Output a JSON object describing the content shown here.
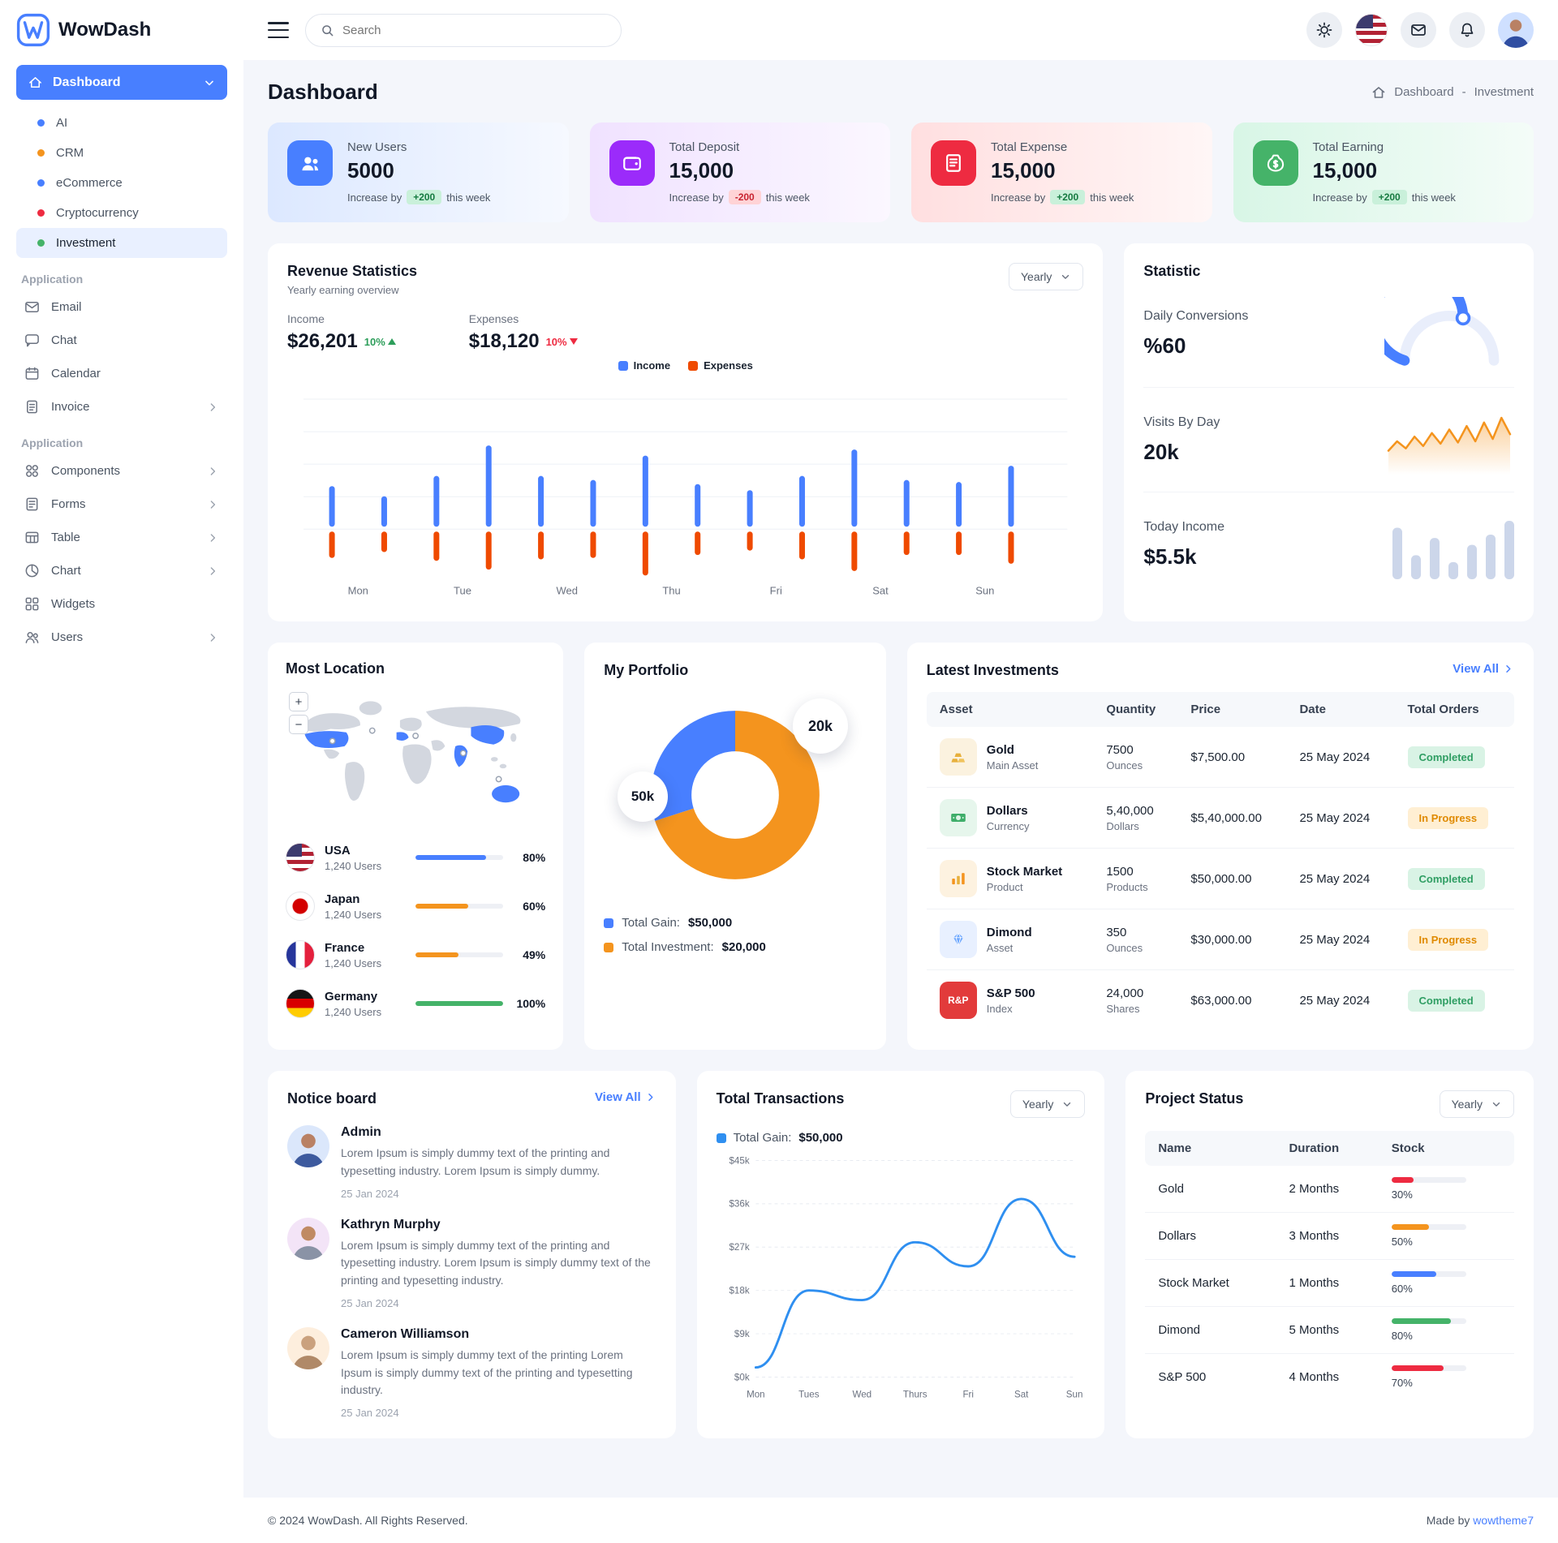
{
  "brand": {
    "name": "WowDash"
  },
  "topbar": {
    "search_placeholder": "Search"
  },
  "sidebar": {
    "dashboard_label": "Dashboard",
    "dashboard_children": [
      {
        "label": "AI",
        "color": "#487fff"
      },
      {
        "label": "CRM",
        "color": "#f4941e"
      },
      {
        "label": "eCommerce",
        "color": "#487fff"
      },
      {
        "label": "Cryptocurrency",
        "color": "#ee2b41"
      },
      {
        "label": "Investment",
        "color": "#45b369"
      }
    ],
    "sections": [
      {
        "label": "Application",
        "items": [
          {
            "label": "Email"
          },
          {
            "label": "Chat"
          },
          {
            "label": "Calendar"
          },
          {
            "label": "Invoice"
          }
        ]
      },
      {
        "label": "Application",
        "items": [
          {
            "label": "Components"
          },
          {
            "label": "Forms"
          },
          {
            "label": "Table"
          },
          {
            "label": "Chart"
          },
          {
            "label": "Widgets"
          },
          {
            "label": "Users"
          }
        ]
      }
    ]
  },
  "page": {
    "title": "Dashboard",
    "breadcrumb_home": "Dashboard",
    "breadcrumb_sep": "-",
    "breadcrumb_current": "Investment"
  },
  "stat_cards": [
    {
      "title": "New Users",
      "value": "5000",
      "lead": "Increase by",
      "delta": "+200",
      "tail": "this week",
      "accent": "#487fff"
    },
    {
      "title": "Total Deposit",
      "value": "15,000",
      "lead": "Increase by",
      "delta": "-200",
      "tail": "this week",
      "accent": "#9b2bfa"
    },
    {
      "title": "Total Expense",
      "value": "15,000",
      "lead": "Increase by",
      "delta": "+200",
      "tail": "this week",
      "accent": "#ee2b41"
    },
    {
      "title": "Total Earning",
      "value": "15,000",
      "lead": "Increase by",
      "delta": "+200",
      "tail": "this week",
      "accent": "#45b369"
    }
  ],
  "revenue": {
    "title": "Revenue Statistics",
    "subtitle": "Yearly earning overview",
    "period": "Yearly",
    "income_label": "Income",
    "income_value": "$26,201",
    "income_delta": "10%",
    "expenses_label": "Expenses",
    "expenses_value": "$18,120",
    "expenses_delta": "10%",
    "legend_income": "Income",
    "legend_expenses": "Expenses"
  },
  "statistic": {
    "title": "Statistic",
    "conversions_label": "Daily Conversions",
    "conversions_value": "%60",
    "visits_label": "Visits By Day",
    "visits_value": "20k",
    "today_income_label": "Today Income",
    "today_income_value": "$5.5k"
  },
  "locations": {
    "title": "Most Location",
    "zoom_in": "+",
    "zoom_out": "−",
    "items": [
      {
        "country": "USA",
        "users": "1,240 Users",
        "percent": 80,
        "percent_label": "80%",
        "color": "#487fff"
      },
      {
        "country": "Japan",
        "users": "1,240 Users",
        "percent": 60,
        "percent_label": "60%",
        "color": "#f4941e"
      },
      {
        "country": "France",
        "users": "1,240 Users",
        "percent": 49,
        "percent_label": "49%",
        "color": "#f4941e"
      },
      {
        "country": "Germany",
        "users": "1,240 Users",
        "percent": 100,
        "percent_label": "100%",
        "color": "#45b369"
      }
    ]
  },
  "portfolio": {
    "title": "My Portfolio",
    "callout_top": "20k",
    "callout_left": "50k",
    "legend": [
      {
        "label": "Total Gain:",
        "value": "$50,000",
        "color": "#487fff"
      },
      {
        "label": "Total Investment:",
        "value": "$20,000",
        "color": "#f4941e"
      }
    ]
  },
  "investments": {
    "title": "Latest Investments",
    "view_all": "View All",
    "headers": [
      "Asset",
      "Quantity",
      "Price",
      "Date",
      "Total Orders"
    ],
    "rows": [
      {
        "asset": "Gold",
        "type": "Main Asset",
        "qty": "7500",
        "qty_unit": "Ounces",
        "price": "$7,500.00",
        "date": "25 May 2024",
        "status": "Completed"
      },
      {
        "asset": "Dollars",
        "type": "Currency",
        "qty": "5,40,000",
        "qty_unit": "Dollars",
        "price": "$5,40,000.00",
        "date": "25 May 2024",
        "status": "In Progress"
      },
      {
        "asset": "Stock Market",
        "type": "Product",
        "qty": "1500",
        "qty_unit": "Products",
        "price": "$50,000.00",
        "date": "25 May 2024",
        "status": "Completed"
      },
      {
        "asset": "Dimond",
        "type": "Asset",
        "qty": "350",
        "qty_unit": "Ounces",
        "price": "$30,000.00",
        "date": "25 May 2024",
        "status": "In Progress"
      },
      {
        "asset": "S&P 500",
        "type": "Index",
        "qty": "24,000",
        "qty_unit": "Shares",
        "price": "$63,000.00",
        "date": "25 May 2024",
        "status": "Completed",
        "icon_text": "R&P"
      }
    ]
  },
  "notice": {
    "title": "Notice board",
    "view_all": "View All",
    "items": [
      {
        "name": "Admin",
        "text": "Lorem Ipsum is simply dummy text of the printing and typesetting industry. Lorem Ipsum is simply dummy.",
        "date": "25 Jan 2024"
      },
      {
        "name": "Kathryn Murphy",
        "text": "Lorem Ipsum is simply dummy text of the printing and typesetting industry. Lorem Ipsum is simply dummy text of the printing and typesetting industry.",
        "date": "25 Jan 2024"
      },
      {
        "name": "Cameron Williamson",
        "text": "Lorem Ipsum is simply dummy text of the printing Lorem Ipsum is simply dummy text of the printing and typesetting industry.",
        "date": "25 Jan 2024"
      }
    ]
  },
  "transactions": {
    "title": "Total Transactions",
    "period": "Yearly",
    "legend_label": "Total Gain:",
    "legend_value": "$50,000"
  },
  "project_status": {
    "title": "Project Status",
    "period": "Yearly",
    "headers": [
      "Name",
      "Duration",
      "Stock"
    ],
    "rows": [
      {
        "name": "Gold",
        "duration": "2 Months",
        "percent": 30,
        "percent_label": "30%",
        "color": "#ee2b41"
      },
      {
        "name": "Dollars",
        "duration": "3 Months",
        "percent": 50,
        "percent_label": "50%",
        "color": "#f4941e"
      },
      {
        "name": "Stock Market",
        "duration": "1 Months",
        "percent": 60,
        "percent_label": "60%",
        "color": "#487fff"
      },
      {
        "name": "Dimond",
        "duration": "5 Months",
        "percent": 80,
        "percent_label": "80%",
        "color": "#45b369"
      },
      {
        "name": "S&P 500",
        "duration": "4 Months",
        "percent": 70,
        "percent_label": "70%",
        "color": "#ee2b41"
      }
    ]
  },
  "footer": {
    "copyright": "© 2024 WowDash. All Rights Reserved.",
    "made_by": "Made by",
    "brand_link": "wowtheme7"
  },
  "chart_data": [
    {
      "id": "revenue-bars",
      "type": "bar",
      "title": "Revenue Statistics",
      "categories": [
        "Mon",
        "Tue",
        "Wed",
        "Thu",
        "Fri",
        "Sat",
        "Sun"
      ],
      "series": [
        {
          "name": "Income",
          "color": "#487fff",
          "values": [
            20,
            15,
            25,
            40,
            25,
            23,
            35,
            21,
            18,
            25,
            38,
            23,
            22,
            30
          ]
        },
        {
          "name": "Expenses",
          "color": "#ef4a00",
          "values": [
            18,
            14,
            20,
            26,
            19,
            18,
            30,
            16,
            13,
            19,
            27,
            16,
            16,
            22
          ]
        }
      ],
      "note": "two bar pairs per weekday; income above baseline, expenses below"
    },
    {
      "id": "daily-conversions-gauge",
      "type": "gauge",
      "value": 60,
      "max": 100,
      "color": "#487fff",
      "track": "#e9eefb"
    },
    {
      "id": "visits-sparkline",
      "type": "area",
      "color": "#f4941e",
      "values": [
        12,
        20,
        14,
        24,
        16,
        27,
        18,
        30,
        19,
        33,
        20,
        36,
        22,
        40,
        26
      ]
    },
    {
      "id": "income-bars",
      "type": "bar",
      "color": "#ccd6ea",
      "values": [
        30,
        14,
        24,
        10,
        20,
        26,
        34
      ]
    },
    {
      "id": "portfolio-donut",
      "type": "pie",
      "slices": [
        {
          "label": "Total Investment",
          "amount": "$20,000",
          "share": 70,
          "color": "#f4941e"
        },
        {
          "label": "Total Gain",
          "amount": "$50,000",
          "share": 30,
          "color": "#487fff"
        }
      ],
      "callouts": [
        "20k",
        "50k"
      ]
    },
    {
      "id": "transactions-line",
      "type": "line",
      "color": "#2f8ff0",
      "x": [
        "Mon",
        "Tues",
        "Wed",
        "Thurs",
        "Fri",
        "Sat",
        "Sun"
      ],
      "values": [
        2,
        18,
        16,
        28,
        23,
        37,
        25
      ],
      "yticks": [
        "$0k",
        "$9k",
        "$18k",
        "$27k",
        "$36k",
        "$45k"
      ],
      "ymax": 45
    }
  ]
}
